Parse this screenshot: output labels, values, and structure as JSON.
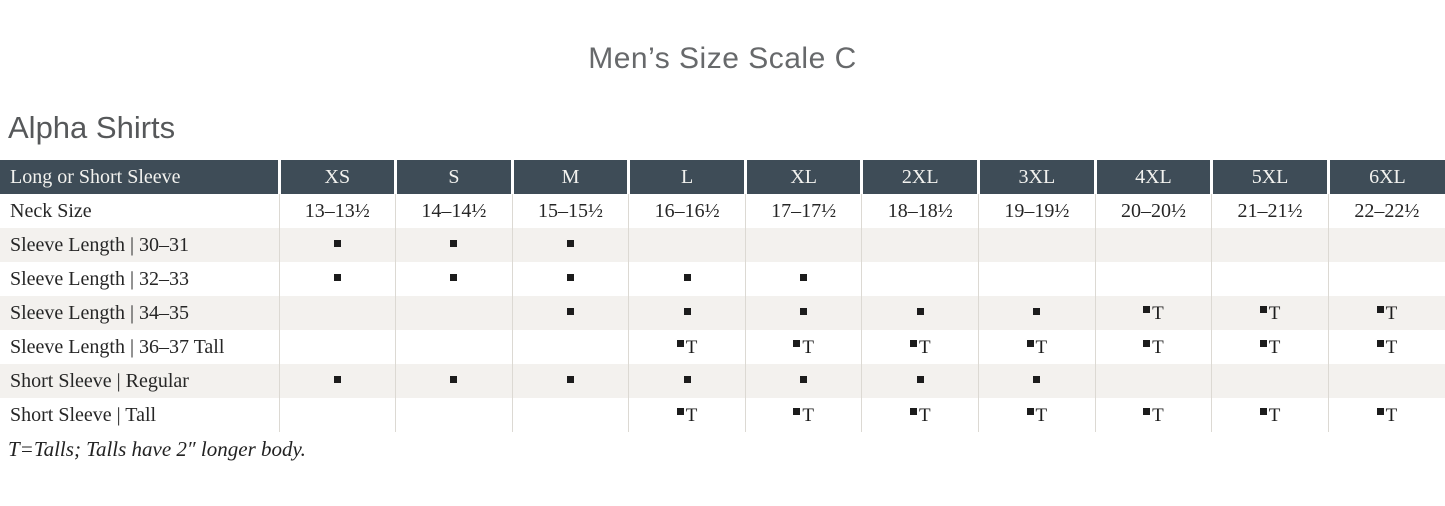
{
  "page_title": "Men’s Size Scale C",
  "section_title": "Alpha Shirts",
  "footnote": "T=Talls; Talls have 2″ longer body.",
  "legend": {
    "dot_meaning": "size available",
    "T_meaning": "Tall"
  },
  "colors": {
    "header_bg": "#3e4c57",
    "header_text": "#f2f2ef",
    "stripe_bg": "#f3f1ee",
    "body_text": "#262626",
    "divider": "#dcd9d3",
    "marker": "#1c1c1c",
    "title_text": "#67696b",
    "section_text": "#56585a"
  },
  "table": {
    "header": {
      "label": "Long or Short Sleeve",
      "sizes": [
        "XS",
        "S",
        "M",
        "L",
        "XL",
        "2XL",
        "3XL",
        "4XL",
        "5XL",
        "6XL"
      ]
    },
    "rows": [
      {
        "label": "Neck Size",
        "cells": [
          "13–13½",
          "14–14½",
          "15–15½",
          "16–16½",
          "17–17½",
          "18–18½",
          "19–19½",
          "20–20½",
          "21–21½",
          "22–22½"
        ]
      },
      {
        "label": "Sleeve Length  |  30–31",
        "cells": [
          "dot",
          "dot",
          "dot",
          "",
          "",
          "",
          "",
          "",
          "",
          ""
        ]
      },
      {
        "label": "Sleeve Length  |  32–33",
        "cells": [
          "dot",
          "dot",
          "dot",
          "dot",
          "dot",
          "",
          "",
          "",
          "",
          ""
        ]
      },
      {
        "label": "Sleeve Length  |  34–35",
        "cells": [
          "",
          "",
          "dot",
          "dot",
          "dot",
          "dot",
          "dot",
          "T",
          "T",
          "T"
        ]
      },
      {
        "label": "Sleeve Length  |  36–37 Tall",
        "cells": [
          "",
          "",
          "",
          "T",
          "T",
          "T",
          "T",
          "T",
          "T",
          "T"
        ]
      },
      {
        "label": "Short Sleeve  |  Regular",
        "cells": [
          "dot",
          "dot",
          "dot",
          "dot",
          "dot",
          "dot",
          "dot",
          "",
          "",
          ""
        ]
      },
      {
        "label": "Short Sleeve  |  Tall",
        "cells": [
          "",
          "",
          "",
          "T",
          "T",
          "T",
          "T",
          "T",
          "T",
          "T"
        ]
      }
    ]
  }
}
